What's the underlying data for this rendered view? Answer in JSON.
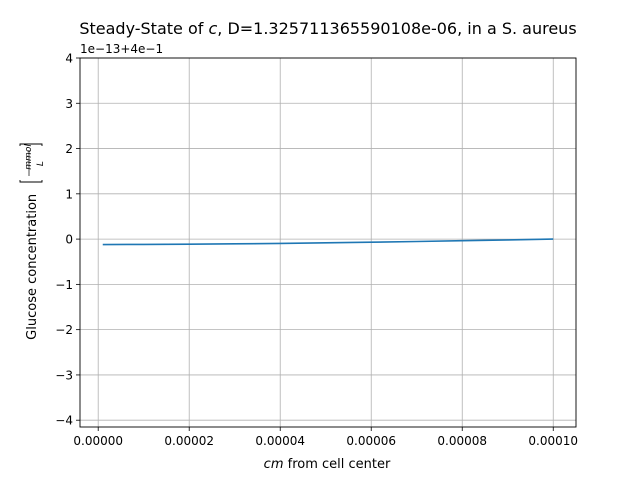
{
  "chart_data": {
    "type": "line",
    "title_parts": [
      "Steady-State of ",
      "c",
      ", D=1.325711365590108e-06, in a S. aureus"
    ],
    "xlabel_parts": [
      "cm",
      " from cell center"
    ],
    "ylabel_parts": [
      "Glucose concentration ",
      "mmol",
      "L"
    ],
    "offset_text": "1e−13+4e−1",
    "xlim": [
      -4e-06,
      0.000105
    ],
    "ylim": [
      -4.15,
      4
    ],
    "x_ticks": [
      0.0,
      2e-05,
      4e-05,
      6e-05,
      8e-05,
      0.0001
    ],
    "x_tick_labels": [
      "0.00000",
      "0.00002",
      "0.00004",
      "0.00006",
      "0.00008",
      "0.00010"
    ],
    "y_ticks": [
      -4,
      -3,
      -2,
      -1,
      0,
      1,
      2,
      3,
      4
    ],
    "y_tick_labels": [
      "−4",
      "−3",
      "−2",
      "−1",
      "0",
      "1",
      "2",
      "3",
      "4"
    ],
    "grid": true,
    "series": [
      {
        "color": "#1f77b4",
        "x": [
          1e-06,
          1e-05,
          2e-05,
          3e-05,
          4e-05,
          5e-05,
          6e-05,
          7e-05,
          8e-05,
          9e-05,
          0.0001
        ],
        "y": [
          -0.12,
          -0.118,
          -0.113,
          -0.105,
          -0.095,
          -0.083,
          -0.069,
          -0.053,
          -0.036,
          -0.018,
          0.0
        ]
      }
    ]
  }
}
